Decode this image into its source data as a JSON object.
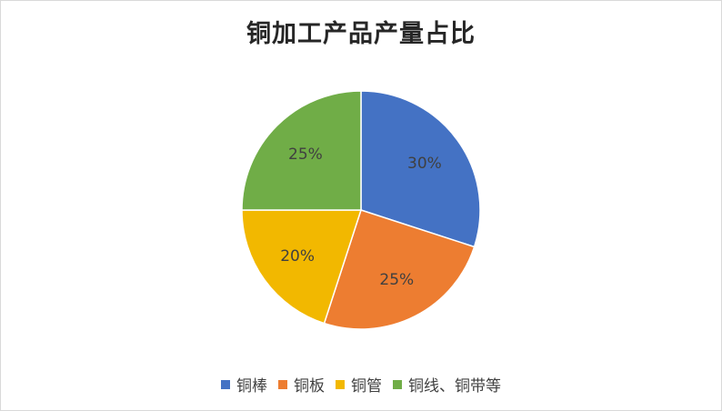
{
  "chart_data": {
    "type": "pie",
    "title": "铜加工产品产量占比",
    "categories": [
      "铜棒",
      "铜板",
      "铜管",
      "铜线、铜带等"
    ],
    "values": [
      30,
      25,
      20,
      25
    ],
    "labels": [
      "30%",
      "25%",
      "20%",
      "25%"
    ],
    "colors": [
      "#4472C4",
      "#ED7D31",
      "#F2B800",
      "#70AD47"
    ],
    "legend_position": "bottom",
    "start_angle": "12 o'clock",
    "direction": "clockwise"
  }
}
